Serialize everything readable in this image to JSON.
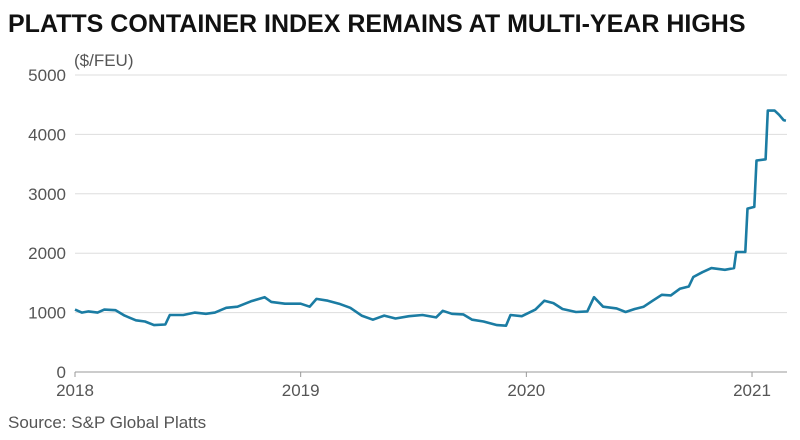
{
  "chart_data": {
    "type": "line",
    "title": "PLATTS CONTAINER INDEX REMAINS AT MULTI-YEAR HIGHS",
    "y_label": "($/FEU)",
    "source": "Source: S&P Global Platts",
    "x": [
      2018.0,
      2018.03,
      2018.06,
      2018.1,
      2018.13,
      2018.18,
      2018.22,
      2018.27,
      2018.31,
      2018.35,
      2018.4,
      2018.42,
      2018.48,
      2018.53,
      2018.58,
      2018.62,
      2018.67,
      2018.72,
      2018.78,
      2018.84,
      2018.87,
      2018.93,
      2019.0,
      2019.04,
      2019.07,
      2019.12,
      2019.17,
      2019.22,
      2019.27,
      2019.32,
      2019.37,
      2019.42,
      2019.48,
      2019.54,
      2019.6,
      2019.63,
      2019.67,
      2019.72,
      2019.76,
      2019.81,
      2019.87,
      2019.91,
      2019.93,
      2019.98,
      2020.04,
      2020.08,
      2020.12,
      2020.16,
      2020.22,
      2020.27,
      2020.3,
      2020.34,
      2020.4,
      2020.44,
      2020.48,
      2020.52,
      2020.56,
      2020.6,
      2020.64,
      2020.68,
      2020.72,
      2020.74,
      2020.78,
      2020.82,
      2020.88,
      2020.92,
      2020.93,
      2020.97,
      2020.98,
      2021.01,
      2021.02,
      2021.06,
      2021.07,
      2021.1,
      2021.12,
      2021.14,
      2021.15
    ],
    "series": [
      {
        "name": "Platts Container Index",
        "color": "#1b7ca3",
        "values": [
          1050,
          1000,
          1020,
          1000,
          1050,
          1040,
          950,
          870,
          850,
          790,
          800,
          960,
          960,
          1000,
          980,
          1000,
          1080,
          1100,
          1190,
          1260,
          1180,
          1150,
          1150,
          1100,
          1230,
          1200,
          1150,
          1080,
          950,
          880,
          950,
          900,
          940,
          960,
          920,
          1030,
          980,
          970,
          880,
          850,
          790,
          780,
          960,
          940,
          1050,
          1200,
          1160,
          1060,
          1010,
          1020,
          1260,
          1100,
          1070,
          1010,
          1060,
          1100,
          1200,
          1300,
          1290,
          1400,
          1440,
          1600,
          1680,
          1750,
          1720,
          1750,
          2020,
          2020,
          2750,
          2780,
          3560,
          3580,
          4400,
          4400,
          4330,
          4240,
          4230
        ]
      }
    ],
    "xlim": [
      2018,
      2021.155
    ],
    "xticks": [
      2018,
      2019,
      2020,
      2021
    ],
    "ylim": [
      0,
      5000
    ],
    "yticks": [
      0,
      1000,
      2000,
      3000,
      4000,
      5000
    ],
    "grid": true
  }
}
